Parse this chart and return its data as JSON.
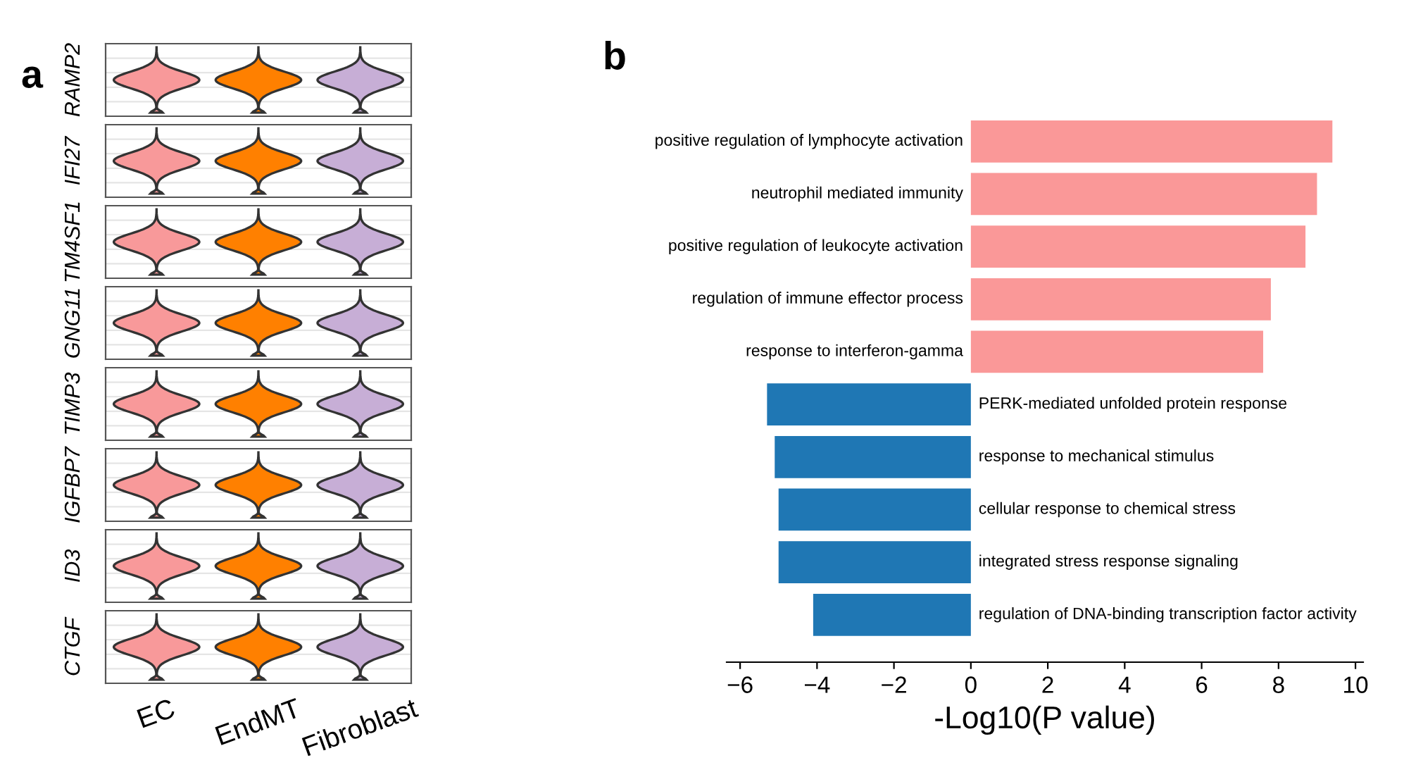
{
  "chart_data": [
    {
      "type": "other",
      "title": "a",
      "categories": [
        "EC",
        "EndMT",
        "Fibroblast"
      ],
      "y_categories": [
        "RAMP2",
        "IFI27",
        "TM4SF1",
        "GNG11",
        "TIMP3",
        "IGFBP7",
        "ID3",
        "CTGF"
      ],
      "colors": [
        "#f8999a",
        "#ff8000",
        "#c7aed6"
      ]
    },
    {
      "type": "bar",
      "orientation": "horizontal",
      "title": "b",
      "xlabel": "-Log10(P value)",
      "categories": [
        "positive regulation of lymphocyte activation",
        "neutrophil mediated immunity",
        "positive regulation of leukocyte activation",
        "regulation of immune effector process",
        "response to interferon-gamma",
        "PERK-mediated unfolded protein response",
        "response to mechanical stimulus",
        "cellular response to chemical stress",
        "integrated stress response signaling",
        "regulation of DNA-binding transcription factor activity"
      ],
      "values": [
        9.4,
        9.0,
        8.7,
        7.8,
        7.6,
        -5.3,
        -5.1,
        -5.0,
        -5.0,
        -4.1
      ],
      "colors": [
        "#fa9898",
        "#fa9898",
        "#fa9898",
        "#fa9898",
        "#fa9898",
        "#1f77b4",
        "#1f77b4",
        "#1f77b4",
        "#1f77b4",
        "#1f77b4"
      ],
      "xlim": [
        -6.35,
        10.2
      ],
      "xticks": [
        {
          "value": -6,
          "label": "−6"
        },
        {
          "value": -4,
          "label": "−4"
        },
        {
          "value": -2,
          "label": "−2"
        },
        0,
        2,
        4,
        6,
        8,
        10
      ],
      "tick_labels": "x",
      "grid": false
    }
  ]
}
